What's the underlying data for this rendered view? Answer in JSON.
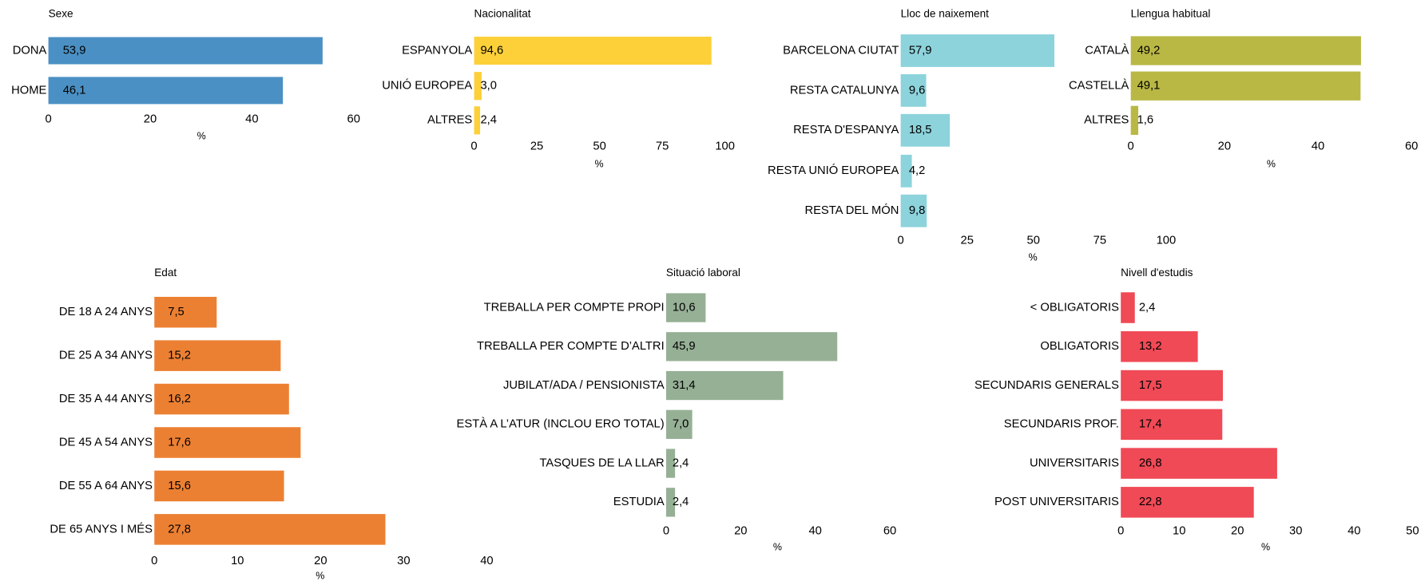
{
  "chart_data": [
    {
      "type": "bar",
      "orientation": "horizontal",
      "title": "Sexe",
      "categories": [
        "DONA",
        "HOME"
      ],
      "values": [
        53.9,
        46.1
      ],
      "value_labels": [
        "53,9",
        "46,1"
      ],
      "xlim": [
        0,
        60
      ],
      "xticks": [
        0,
        20,
        40,
        60
      ],
      "xlabel": "%",
      "color": "#4a90c4"
    },
    {
      "type": "bar",
      "orientation": "horizontal",
      "title": "Nacionalitat",
      "categories": [
        "ESPANYOLA",
        "UNIÓ EUROPEA",
        "ALTRES"
      ],
      "values": [
        94.6,
        3.0,
        2.4
      ],
      "value_labels": [
        "94,6",
        "3,0",
        "2,4"
      ],
      "xlim": [
        0,
        100
      ],
      "xticks": [
        0,
        25,
        50,
        75,
        100
      ],
      "xlabel": "%",
      "color": "#fdd03a"
    },
    {
      "type": "bar",
      "orientation": "horizontal",
      "title": "Lloc de naixement",
      "categories": [
        "BARCELONA CIUTAT",
        "RESTA CATALUNYA",
        "RESTA D'ESPANYA",
        "RESTA UNIÓ EUROPEA",
        "RESTA DEL MÓN"
      ],
      "values": [
        57.9,
        9.6,
        18.5,
        4.2,
        9.8
      ],
      "value_labels": [
        "57,9",
        "9,6",
        "18,5",
        "4,2",
        "9,8"
      ],
      "xlim": [
        0,
        100
      ],
      "xticks": [
        0,
        25,
        50,
        75,
        100
      ],
      "xlabel": "%",
      "color": "#8dd3dc"
    },
    {
      "type": "bar",
      "orientation": "horizontal",
      "title": "Llengua habitual",
      "categories": [
        "CATALÀ",
        "CASTELLÀ",
        "ALTRES"
      ],
      "values": [
        49.2,
        49.1,
        1.6
      ],
      "value_labels": [
        "49,2",
        "49,1",
        "1,6"
      ],
      "xlim": [
        0,
        60
      ],
      "xticks": [
        0,
        20,
        40,
        60
      ],
      "xlabel": "%",
      "color": "#b9b845"
    },
    {
      "type": "bar",
      "orientation": "horizontal",
      "title": "Edat",
      "categories": [
        "DE 18 A 24 ANYS",
        "DE 25 A 34 ANYS",
        "DE 35 A 44 ANYS",
        "DE 45 A 54 ANYS",
        "DE 55 A 64 ANYS",
        "DE 65 ANYS I MÉS"
      ],
      "values": [
        7.5,
        15.2,
        16.2,
        17.6,
        15.6,
        27.8
      ],
      "value_labels": [
        "7,5",
        "15,2",
        "16,2",
        "17,6",
        "15,6",
        "27,8"
      ],
      "xlim": [
        0,
        40
      ],
      "xticks": [
        0,
        10,
        20,
        30,
        40
      ],
      "xlabel": "%",
      "color": "#ec8032"
    },
    {
      "type": "bar",
      "orientation": "horizontal",
      "title": "Situació laboral",
      "categories": [
        "TREBALLA PER COMPTE PROPI",
        "TREBALLA PER COMPTE D’ALTRI",
        "JUBILAT/ADA / PENSIONISTA",
        "ESTÀ A L’ATUR (INCLOU ERO TOTAL)",
        "TASQUES DE LA LLAR",
        "ESTUDIA"
      ],
      "values": [
        10.6,
        45.9,
        31.4,
        7.0,
        2.4,
        2.4
      ],
      "value_labels": [
        "10,6",
        "45,9",
        "31,4",
        "7,0",
        "2,4",
        "2,4"
      ],
      "xlim": [
        0,
        60
      ],
      "xticks": [
        0,
        20,
        40,
        60
      ],
      "xlabel": "%",
      "color": "#96b096"
    },
    {
      "type": "bar",
      "orientation": "horizontal",
      "title": "Nivell d'estudis",
      "categories": [
        "< OBLIGATORIS",
        "OBLIGATORIS",
        "SECUNDARIS GENERALS",
        "SECUNDARIS PROF.",
        "UNIVERSITARIS",
        "POST UNIVERSITARIS"
      ],
      "values": [
        2.4,
        13.2,
        17.5,
        17.4,
        26.8,
        22.8
      ],
      "value_labels": [
        "2,4",
        "13,2",
        "17,5",
        "17,4",
        "26,8",
        "22,8"
      ],
      "xlim": [
        0,
        50
      ],
      "xticks": [
        0,
        10,
        20,
        30,
        40,
        50
      ],
      "xlabel": "%",
      "color": "#ef4a56"
    }
  ]
}
